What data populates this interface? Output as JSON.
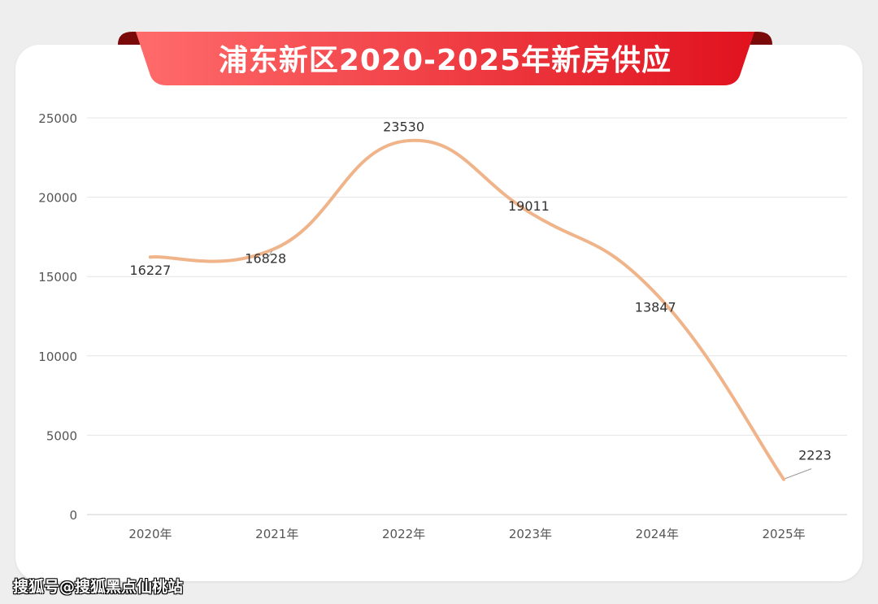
{
  "title": "浦东新区2020-2025年新房供应",
  "watermark": "搜狐号@搜狐黑点仙桃站",
  "colors": {
    "banner_light": "#ff6b6b",
    "banner_dark": "#e0121e",
    "banner_tab": "#7a0a0a",
    "line": "#f0b48a",
    "grid": "#e4e4e4",
    "axis_text": "#555555",
    "label_text": "#333333"
  },
  "chart_data": {
    "type": "line",
    "categories": [
      "2020年",
      "2021年",
      "2022年",
      "2023年",
      "2024年",
      "2025年"
    ],
    "series": [
      {
        "values": [
          16227,
          16828,
          23530,
          19011,
          13847,
          2223
        ]
      }
    ],
    "data_labels": [
      "16227",
      "16828",
      "23530",
      "19011",
      "13847",
      "2223"
    ],
    "ylim": [
      0,
      25000
    ],
    "yticks": [
      0,
      5000,
      10000,
      15000,
      20000,
      25000
    ],
    "ytick_labels": [
      "0",
      "5000",
      "10000",
      "15000",
      "20000",
      "25000"
    ],
    "smooth": true,
    "grid": true,
    "legend": "none",
    "xlabel": "",
    "ylabel": ""
  }
}
